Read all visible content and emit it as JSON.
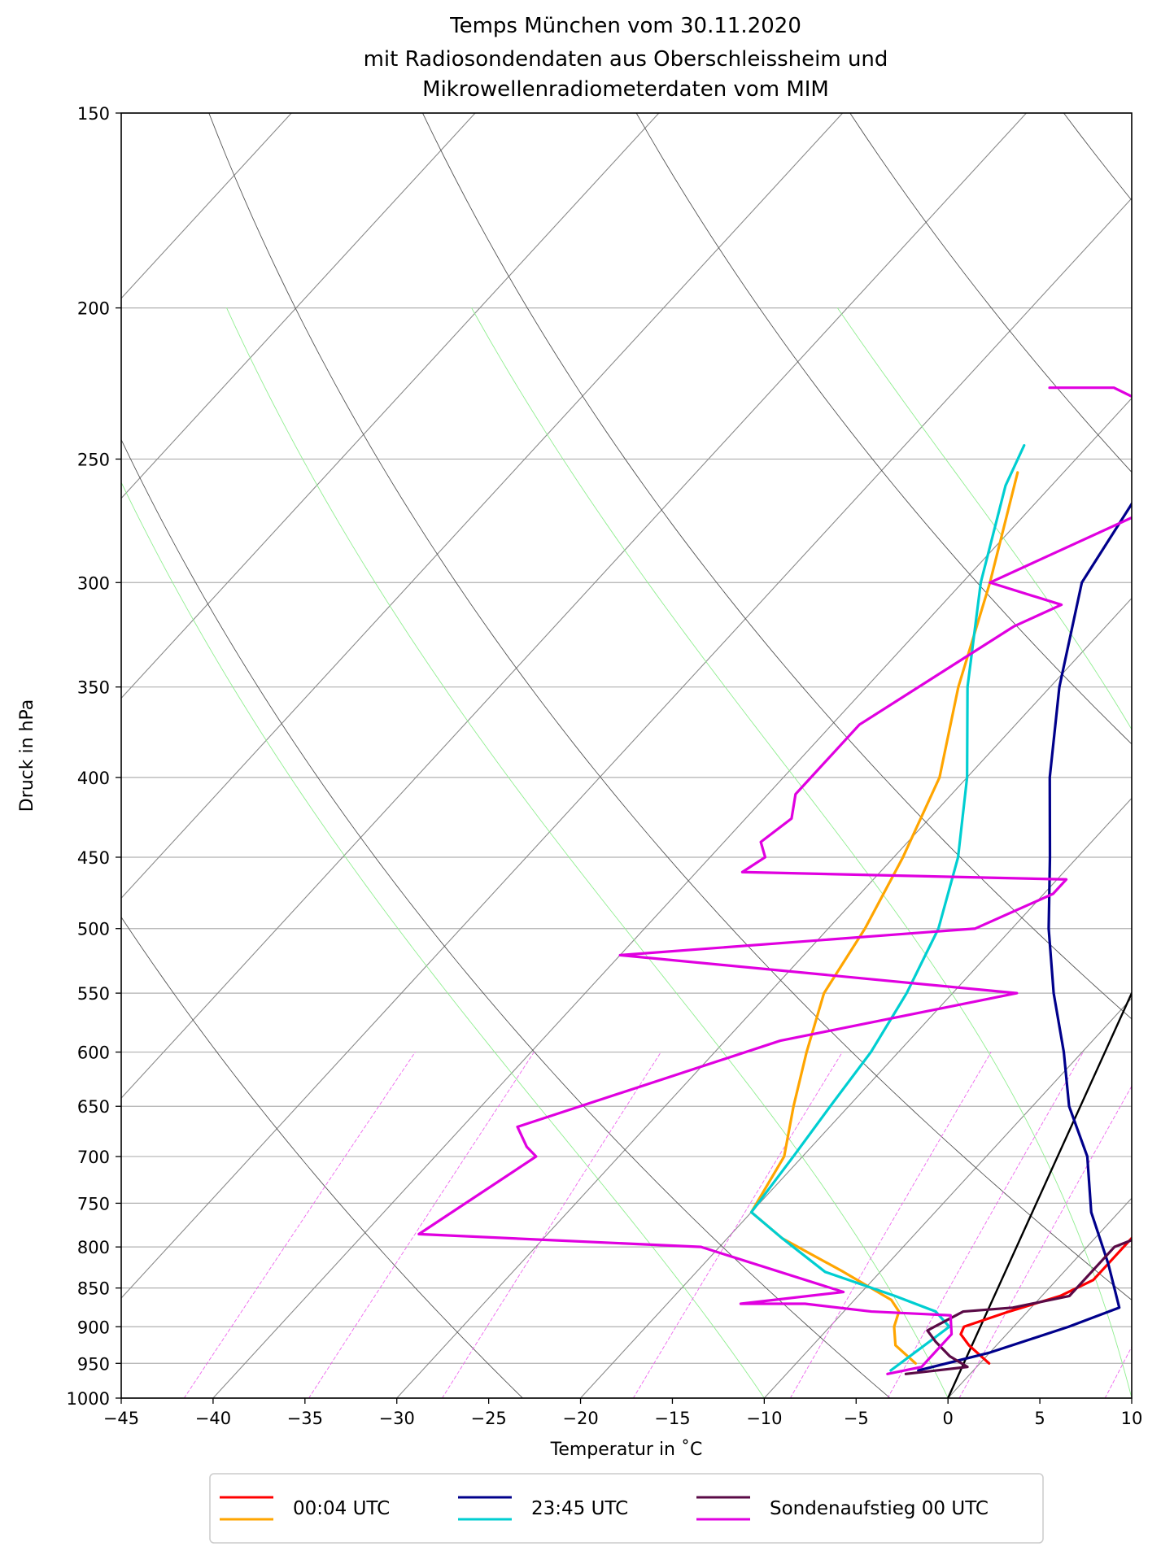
{
  "chart_data": {
    "type": "line",
    "subtype": "skew-T log-p diagram",
    "title_lines": [
      "Temps München vom 30.11.2020",
      "mit Radiosondendaten aus Oberschleissheim und",
      "Mikrowellenradiometerdaten vom MIM"
    ],
    "xlabel": "Temperatur in ˚C",
    "ylabel": "Druck in hPa",
    "xlim": [
      -45,
      10
    ],
    "ylim": [
      1000,
      150
    ],
    "y_scale": "log",
    "x_ticks": [
      -45,
      -40,
      -35,
      -30,
      -25,
      -20,
      -15,
      -10,
      -5,
      0,
      5,
      10
    ],
    "x_tick_labels": [
      "−45",
      "−40",
      "−35",
      "−30",
      "−25",
      "−20",
      "−15",
      "−10",
      "−5",
      "0",
      "5",
      "10"
    ],
    "y_ticks": [
      1000,
      950,
      900,
      850,
      800,
      750,
      700,
      650,
      600,
      550,
      500,
      450,
      400,
      350,
      300,
      250,
      200,
      150
    ],
    "y_tick_labels": [
      "1000",
      "950",
      "900",
      "850",
      "800",
      "750",
      "700",
      "650",
      "600",
      "550",
      "500",
      "450",
      "400",
      "350",
      "300",
      "250",
      "200",
      "150"
    ],
    "grid": true,
    "skew_per_decade_C": 78,
    "isotherm_start_C": [
      -130,
      -120,
      -110,
      -100,
      -90,
      -80,
      -70,
      -60,
      -50,
      -40,
      -30,
      -20,
      -10,
      0,
      10
    ],
    "dry_adiabats_theta_K": [
      250,
      270,
      290,
      310,
      330,
      350,
      370,
      390,
      410,
      430,
      450
    ],
    "moist_adiabats_start_C": [
      -10,
      0,
      10,
      20,
      30
    ],
    "mixing_ratios_g_per_kg": [
      0.1,
      0.2,
      0.4,
      1,
      2,
      3,
      4,
      7,
      10,
      16,
      20
    ],
    "mixing_ratio_top_hPa": 600,
    "reference_line": {
      "name": "black line",
      "color": "#000000",
      "points": [
        [
          0,
          1000
        ],
        [
          10,
          550
        ]
      ]
    },
    "series": [
      {
        "name": "00:04 UTC",
        "kind": "temperature",
        "color": "#ff0000",
        "legend": true,
        "points": [
          [
            0.5,
            950
          ],
          [
            -1.5,
            925
          ],
          [
            -2.5,
            910
          ],
          [
            -2.7,
            900
          ],
          [
            -1,
            880
          ],
          [
            1,
            860
          ],
          [
            2,
            840
          ],
          [
            2,
            800
          ],
          [
            2,
            750
          ],
          [
            0.5,
            700
          ],
          [
            -1.5,
            650
          ],
          [
            -4,
            600
          ],
          [
            -7,
            550
          ],
          [
            -10,
            500
          ],
          [
            -13.5,
            450
          ],
          [
            -18,
            400
          ],
          [
            -22.5,
            350
          ],
          [
            -27,
            300
          ],
          [
            -31.5,
            260
          ],
          [
            -33.5,
            245
          ]
        ]
      },
      {
        "name": "00:04 UTC",
        "kind": "dewpoint",
        "color": "#ffa500",
        "legend": true,
        "points": [
          [
            -3.5,
            950
          ],
          [
            -5.5,
            925
          ],
          [
            -6.5,
            900
          ],
          [
            -7,
            880
          ],
          [
            -8,
            865
          ],
          [
            -12,
            830
          ],
          [
            -17,
            790
          ],
          [
            -20,
            760
          ],
          [
            -21,
            700
          ],
          [
            -23,
            650
          ],
          [
            -25,
            600
          ],
          [
            -27,
            550
          ],
          [
            -28,
            500
          ],
          [
            -29.5,
            450
          ],
          [
            -31.5,
            400
          ],
          [
            -35,
            350
          ],
          [
            -38.5,
            300
          ],
          [
            -42.5,
            255
          ]
        ]
      },
      {
        "name": "23:45 UTC",
        "kind": "temperature",
        "color": "#00008b",
        "legend": true,
        "points": [
          [
            -3,
            960
          ],
          [
            0,
            935
          ],
          [
            3,
            900
          ],
          [
            4.8,
            875
          ],
          [
            2,
            820
          ],
          [
            -1.5,
            760
          ],
          [
            -4.5,
            700
          ],
          [
            -8,
            650
          ],
          [
            -11,
            600
          ],
          [
            -14.5,
            550
          ],
          [
            -18,
            500
          ],
          [
            -21.5,
            450
          ],
          [
            -25.5,
            400
          ],
          [
            -29.5,
            350
          ],
          [
            -33.5,
            300
          ],
          [
            -35,
            260
          ],
          [
            -35,
            245
          ]
        ]
      },
      {
        "name": "23:45 UTC",
        "kind": "dewpoint",
        "color": "#00ced1",
        "legend": true,
        "points": [
          [
            -4.5,
            960
          ],
          [
            -4,
            930
          ],
          [
            -3.5,
            900
          ],
          [
            -5,
            880
          ],
          [
            -8,
            860
          ],
          [
            -13,
            830
          ],
          [
            -17,
            790
          ],
          [
            -20,
            760
          ],
          [
            -20.5,
            700
          ],
          [
            -21,
            650
          ],
          [
            -21.5,
            600
          ],
          [
            -22.5,
            550
          ],
          [
            -24,
            500
          ],
          [
            -26.5,
            450
          ],
          [
            -30,
            400
          ],
          [
            -34.5,
            350
          ],
          [
            -39,
            300
          ],
          [
            -42.5,
            260
          ],
          [
            -43.5,
            245
          ]
        ]
      },
      {
        "name": "Sondenaufstieg 00 UTC",
        "kind": "temperature",
        "color": "#5a0a46",
        "legend": true,
        "points": [
          [
            -3.5,
            965
          ],
          [
            -0.5,
            955
          ],
          [
            -2,
            940
          ],
          [
            -3.5,
            920
          ],
          [
            -4.5,
            905
          ],
          [
            -3.5,
            880
          ],
          [
            -1,
            875
          ],
          [
            1.5,
            860
          ],
          [
            1.5,
            850
          ],
          [
            1.5,
            800
          ],
          [
            3,
            780
          ],
          [
            1.5,
            730
          ],
          [
            -0.5,
            670
          ],
          [
            -1.5,
            640
          ],
          [
            -3.5,
            580
          ],
          [
            -6.5,
            530
          ],
          [
            -8.5,
            500
          ],
          [
            -11.5,
            480
          ],
          [
            -9.5,
            460
          ],
          [
            -13.5,
            420
          ],
          [
            -18.5,
            350
          ],
          [
            -23.5,
            310
          ],
          [
            -24,
            300
          ],
          [
            -28.5,
            250
          ],
          [
            -31.5,
            210
          ],
          [
            -30.5,
            205
          ],
          [
            -33.5,
            180
          ],
          [
            -34.5,
            170
          ],
          [
            -30.5,
            155
          ],
          [
            -30,
            152
          ]
        ]
      },
      {
        "name": "Sondenaufstieg 00 UTC",
        "kind": "dewpoint",
        "color": "#e000e0",
        "legend": true,
        "points": [
          [
            -4.5,
            965
          ],
          [
            -3,
            955
          ],
          [
            -3,
            910
          ],
          [
            -4,
            885
          ],
          [
            -8.5,
            880
          ],
          [
            -12.5,
            870
          ],
          [
            -16,
            870
          ],
          [
            -11,
            855
          ],
          [
            -21,
            800
          ],
          [
            -37,
            785
          ],
          [
            -34.5,
            700
          ],
          [
            -35.5,
            690
          ],
          [
            -37,
            670
          ],
          [
            -27,
            590
          ],
          [
            -16.5,
            550
          ],
          [
            -40,
            520
          ],
          [
            -22,
            500
          ],
          [
            -19.5,
            475
          ],
          [
            -19.5,
            465
          ],
          [
            -37.5,
            460
          ],
          [
            -37,
            450
          ],
          [
            -38,
            440
          ],
          [
            -37.5,
            425
          ],
          [
            -38.5,
            410
          ],
          [
            -38.5,
            400
          ],
          [
            -38.5,
            385
          ],
          [
            -38.5,
            370
          ],
          [
            -35,
            320
          ],
          [
            -33.5,
            310
          ],
          [
            -38.5,
            300
          ],
          [
            -30,
            250
          ],
          [
            -41.5,
            225
          ],
          [
            -45,
            225
          ]
        ]
      }
    ],
    "legend": {
      "placement": "bottom-center",
      "entries": [
        {
          "label": "00:04 UTC",
          "colors": [
            "#ff0000",
            "#ffa500"
          ]
        },
        {
          "label": "23:45 UTC",
          "colors": [
            "#00008b",
            "#00ced1"
          ]
        },
        {
          "label": "Sondenaufstieg 00 UTC",
          "colors": [
            "#5a0a46",
            "#e000e0"
          ]
        }
      ]
    },
    "colors": {
      "grid": "#b0b0b0",
      "isotherm": "#8a8a8a",
      "dry_adiabat": "#555555",
      "moist_adiabat": "#90ee90",
      "mixing_ratio": "#ee66ee",
      "axes": "#000000"
    }
  }
}
